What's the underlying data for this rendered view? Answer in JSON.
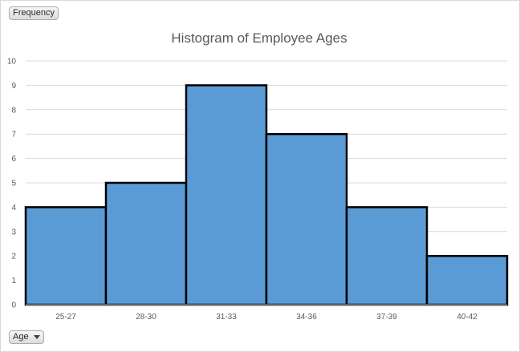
{
  "field_buttons": {
    "frequency_label": "Frequency",
    "age_label": "Age"
  },
  "chart_data": {
    "type": "bar",
    "title": "Histogram of Employee Ages",
    "xlabel": "",
    "ylabel": "",
    "categories": [
      "25-27",
      "28-30",
      "31-33",
      "34-36",
      "37-39",
      "40-42"
    ],
    "values": [
      4,
      5,
      9,
      7,
      4,
      2
    ],
    "ylim": [
      0,
      10
    ],
    "yticks": [
      0,
      1,
      2,
      3,
      4,
      5,
      6,
      7,
      8,
      9,
      10
    ],
    "grid": true,
    "legend": "none",
    "bar_color": "#5b9bd5",
    "bar_edge_color": "#000000"
  }
}
